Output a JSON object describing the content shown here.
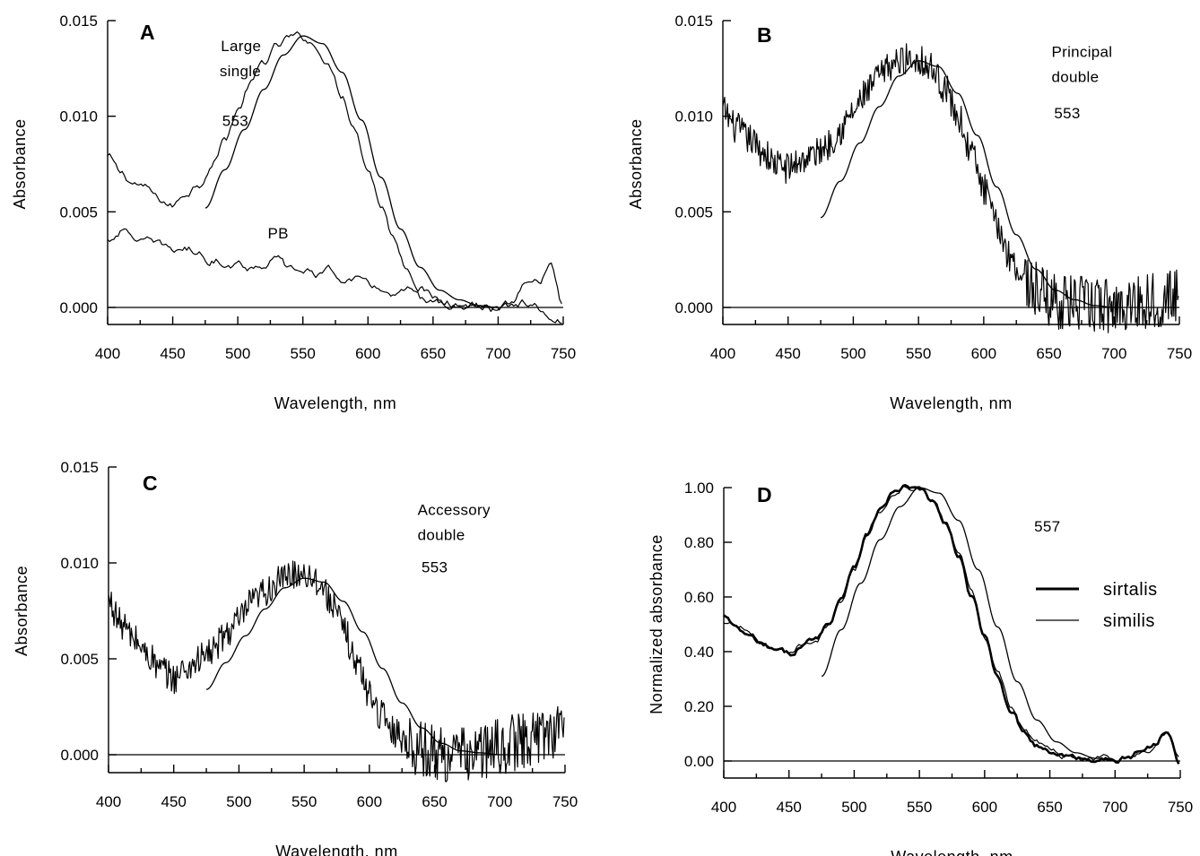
{
  "chart_data": [
    {
      "type": "line",
      "panel": "A",
      "xlabel": "Wavelength, nm",
      "ylabel": "Absorbance",
      "xlim": [
        400,
        750
      ],
      "ylim": [
        0,
        0.015
      ],
      "xticks": [
        400,
        450,
        500,
        550,
        600,
        650,
        700,
        750
      ],
      "yticks": [
        0,
        0.005,
        0.01,
        0.015
      ],
      "ytick_labels": [
        "0.000",
        "0.005",
        "0.010",
        "0.015"
      ],
      "annotations": [
        {
          "text": "Large",
          "x": 487,
          "y": 0.0134
        },
        {
          "text": "single",
          "x": 486,
          "y": 0.0121
        },
        {
          "text": "553",
          "x": 488,
          "y": 0.0095
        },
        {
          "text": "PB",
          "x": 523,
          "y": 0.0036
        }
      ],
      "series": [
        {
          "style": "noisy",
          "x": [
            400,
            410,
            420,
            430,
            440,
            450,
            460,
            470,
            480,
            490,
            500,
            510,
            520,
            530,
            540,
            550,
            560,
            570,
            580,
            590,
            600,
            610,
            620,
            630,
            640,
            650,
            660,
            670,
            680,
            690,
            700,
            710,
            720,
            730,
            740,
            750
          ],
          "values": [
            0.0079,
            0.007,
            0.0065,
            0.0062,
            0.0056,
            0.0053,
            0.006,
            0.0065,
            0.0075,
            0.0088,
            0.0103,
            0.0117,
            0.0128,
            0.0136,
            0.0141,
            0.0141,
            0.0137,
            0.0126,
            0.0112,
            0.0094,
            0.0073,
            0.0054,
            0.0036,
            0.0021,
            0.0011,
            0.0005,
            0.0003,
            0.0002,
            0.0001,
            0.0,
            -0.0004,
            0.0001,
            0.001,
            0.0012,
            0.0021,
            0.0
          ]
        },
        {
          "style": "noisy",
          "x": [
            400,
            410,
            420,
            430,
            440,
            450,
            460,
            470,
            480,
            490,
            500,
            510,
            520,
            530,
            540,
            550,
            560,
            570,
            580,
            590,
            600,
            610,
            620,
            630,
            640,
            650,
            660,
            670,
            680,
            690,
            700,
            710,
            720,
            730,
            740,
            750
          ],
          "values": [
            0.0035,
            0.004,
            0.0037,
            0.0034,
            0.0032,
            0.003,
            0.0031,
            0.0028,
            0.0025,
            0.0024,
            0.0023,
            0.0021,
            0.0023,
            0.0025,
            0.002,
            0.0019,
            0.0018,
            0.0019,
            0.0016,
            0.0015,
            0.0011,
            0.001,
            0.0006,
            0.0008,
            0.0004,
            0.0003,
            0.0002,
            0.0001,
            0.0001,
            0.0,
            -0.0002,
            0.0,
            0.0002,
            0.0,
            -0.0008,
            -0.0008
          ]
        },
        {
          "style": "smooth",
          "x": [
            475,
            490,
            505,
            520,
            535,
            550,
            565,
            580,
            595,
            610,
            625,
            640,
            655,
            670,
            685,
            700
          ],
          "values": [
            0.0052,
            0.0072,
            0.0093,
            0.0114,
            0.0132,
            0.0142,
            0.0138,
            0.0123,
            0.0098,
            0.0068,
            0.0041,
            0.0021,
            0.0009,
            0.0004,
            0.0001,
            0.0
          ]
        }
      ]
    },
    {
      "type": "line",
      "panel": "B",
      "xlabel": "Wavelength, nm",
      "ylabel": "Absorbance",
      "xlim": [
        400,
        750
      ],
      "ylim": [
        0,
        0.015
      ],
      "xticks": [
        400,
        450,
        500,
        550,
        600,
        650,
        700,
        750
      ],
      "yticks": [
        0,
        0.005,
        0.01,
        0.015
      ],
      "ytick_labels": [
        "0.000",
        "0.005",
        "0.010",
        "0.015"
      ],
      "annotations": [
        {
          "text": "Principal",
          "x": 652,
          "y": 0.0131
        },
        {
          "text": "double",
          "x": 652,
          "y": 0.0118
        },
        {
          "text": "553",
          "x": 654,
          "y": 0.0099
        }
      ],
      "series": [
        {
          "style": "noisy",
          "x": [
            400,
            410,
            420,
            430,
            440,
            450,
            460,
            470,
            480,
            490,
            500,
            510,
            520,
            530,
            540,
            550,
            560,
            570,
            580,
            590,
            600,
            610,
            620,
            630,
            640,
            650,
            660,
            670,
            680,
            690,
            700,
            710,
            720,
            730,
            740,
            750
          ],
          "values": [
            0.0103,
            0.0094,
            0.0088,
            0.0082,
            0.0075,
            0.0073,
            0.0077,
            0.008,
            0.0085,
            0.0093,
            0.0102,
            0.0112,
            0.0121,
            0.0127,
            0.013,
            0.013,
            0.0125,
            0.0115,
            0.01,
            0.0082,
            0.0062,
            0.0043,
            0.0027,
            0.0016,
            0.0009,
            0.0005,
            0.0003,
            0.0002,
            0.0001,
            0.0001,
            0.0001,
            0.0002,
            0.0003,
            0.0004,
            0.0005,
            0.0006
          ]
        },
        {
          "style": "smooth",
          "x": [
            475,
            490,
            505,
            520,
            535,
            550,
            565,
            580,
            595,
            610,
            625,
            640,
            655,
            670,
            685,
            700
          ],
          "values": [
            0.0047,
            0.0066,
            0.0086,
            0.0105,
            0.0121,
            0.0129,
            0.0126,
            0.0112,
            0.009,
            0.0063,
            0.0038,
            0.002,
            0.0009,
            0.0004,
            0.0001,
            0.0
          ]
        }
      ]
    },
    {
      "type": "line",
      "panel": "C",
      "xlabel": "Wavelength, nm",
      "ylabel": "Absorbance",
      "xlim": [
        400,
        750
      ],
      "ylim": [
        0,
        0.015
      ],
      "xticks": [
        400,
        450,
        500,
        550,
        600,
        650,
        700,
        750
      ],
      "yticks": [
        0,
        0.005,
        0.01,
        0.015
      ],
      "ytick_labels": [
        "0.000",
        "0.005",
        "0.010",
        "0.015"
      ],
      "annotations": [
        {
          "text": "Accessory",
          "x": 637,
          "y": 0.0125
        },
        {
          "text": "double",
          "x": 637,
          "y": 0.0112
        },
        {
          "text": "553",
          "x": 640,
          "y": 0.0095
        }
      ],
      "series": [
        {
          "style": "noisy",
          "x": [
            400,
            410,
            420,
            430,
            440,
            450,
            460,
            470,
            480,
            490,
            500,
            510,
            520,
            530,
            540,
            550,
            560,
            570,
            580,
            590,
            600,
            610,
            620,
            630,
            640,
            650,
            660,
            670,
            680,
            690,
            700,
            710,
            720,
            730,
            740,
            750
          ],
          "values": [
            0.008,
            0.0068,
            0.006,
            0.0052,
            0.0044,
            0.004,
            0.0045,
            0.005,
            0.0054,
            0.0063,
            0.007,
            0.0079,
            0.0085,
            0.009,
            0.0094,
            0.0095,
            0.0091,
            0.0081,
            0.0066,
            0.0048,
            0.0032,
            0.002,
            0.0012,
            0.0006,
            0.0003,
            0.0001,
            0.0,
            0.0,
            0.0001,
            0.0002,
            0.0004,
            0.0006,
            0.0008,
            0.001,
            0.0013,
            0.0016
          ]
        },
        {
          "style": "smooth",
          "x": [
            475,
            490,
            505,
            520,
            535,
            550,
            565,
            580,
            595,
            610,
            625,
            640,
            655,
            670,
            685,
            700
          ],
          "values": [
            0.0034,
            0.0048,
            0.0062,
            0.0076,
            0.0087,
            0.0092,
            0.009,
            0.008,
            0.0064,
            0.0045,
            0.0027,
            0.0014,
            0.0006,
            0.0002,
            0.0001,
            0.0
          ]
        }
      ]
    },
    {
      "type": "line",
      "panel": "D",
      "xlabel": "Wavelength, nm",
      "ylabel": "Normalized absorbance",
      "xlim": [
        400,
        750
      ],
      "ylim": [
        0,
        1.0
      ],
      "xticks": [
        400,
        450,
        500,
        550,
        600,
        650,
        700,
        750
      ],
      "yticks": [
        0,
        0.2,
        0.4,
        0.6,
        0.8,
        1.0
      ],
      "ytick_labels": [
        "0.00",
        "0.20",
        "0.40",
        "0.60",
        "0.80",
        "1.00"
      ],
      "annotations": [
        {
          "text": "557",
          "x": 638,
          "y": 0.84
        }
      ],
      "legend": [
        {
          "name": "sirtalis",
          "style": "thick"
        },
        {
          "name": "similis",
          "style": "thin"
        }
      ],
      "series": [
        {
          "name": "sirtalis",
          "style": "thick",
          "x": [
            400,
            410,
            420,
            430,
            440,
            450,
            460,
            470,
            480,
            490,
            500,
            510,
            520,
            530,
            540,
            550,
            560,
            570,
            580,
            590,
            600,
            610,
            620,
            630,
            640,
            650,
            660,
            670,
            680,
            690,
            700,
            710,
            720,
            730,
            740,
            750
          ],
          "values": [
            0.53,
            0.48,
            0.45,
            0.42,
            0.4,
            0.39,
            0.42,
            0.45,
            0.5,
            0.6,
            0.72,
            0.83,
            0.92,
            0.98,
            1.0,
            0.99,
            0.95,
            0.87,
            0.75,
            0.6,
            0.45,
            0.31,
            0.19,
            0.11,
            0.06,
            0.03,
            0.02,
            0.01,
            0.01,
            0.01,
            0.0,
            0.01,
            0.04,
            0.06,
            0.12,
            0.0
          ]
        },
        {
          "name": "similis",
          "style": "thin",
          "x": [
            400,
            410,
            420,
            430,
            440,
            450,
            460,
            470,
            480,
            490,
            500,
            510,
            520,
            530,
            540,
            550,
            560,
            570,
            580,
            590,
            600,
            610,
            620,
            630,
            640,
            650,
            660,
            670,
            680,
            690,
            700,
            710,
            720,
            730,
            740,
            750
          ],
          "values": [
            0.5,
            0.49,
            0.47,
            0.43,
            0.41,
            0.4,
            0.43,
            0.44,
            0.49,
            0.58,
            0.7,
            0.81,
            0.91,
            0.97,
            1.0,
            1.0,
            0.96,
            0.88,
            0.77,
            0.62,
            0.46,
            0.32,
            0.2,
            0.12,
            0.07,
            0.04,
            0.02,
            0.01,
            0.01,
            0.01,
            0.0,
            0.01,
            0.03,
            0.05,
            0.1,
            0.0
          ]
        },
        {
          "name": "",
          "style": "smooth",
          "x": [
            475,
            490,
            505,
            520,
            535,
            550,
            565,
            580,
            595,
            610,
            625,
            640,
            655,
            670,
            685,
            700
          ],
          "values": [
            0.31,
            0.48,
            0.65,
            0.81,
            0.93,
            1.0,
            0.98,
            0.88,
            0.7,
            0.49,
            0.29,
            0.15,
            0.07,
            0.03,
            0.01,
            0.0
          ]
        }
      ]
    }
  ]
}
